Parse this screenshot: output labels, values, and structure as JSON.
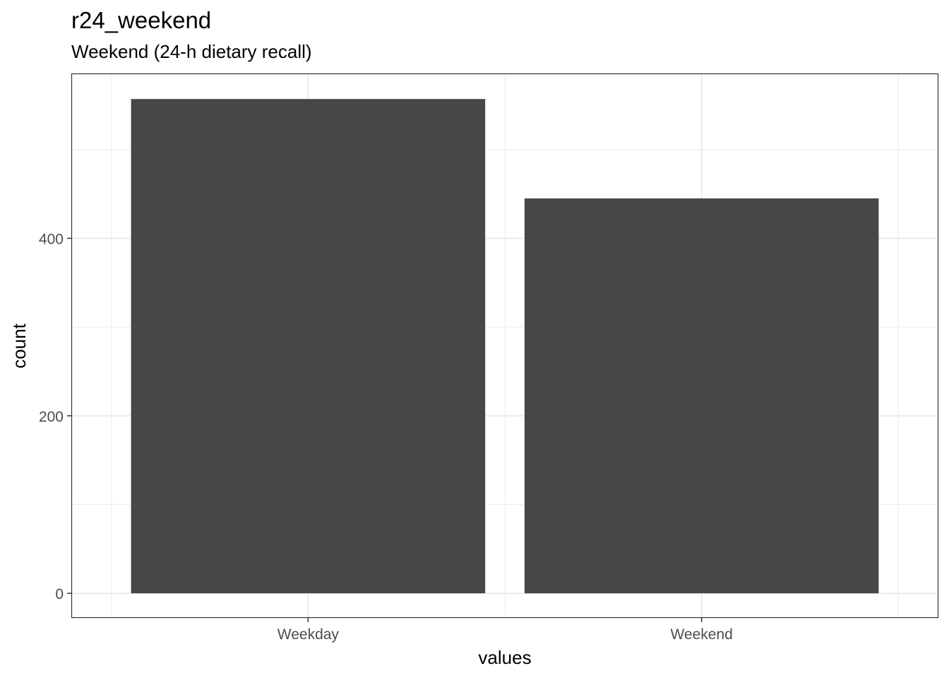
{
  "chart_data": {
    "type": "bar",
    "title": "r24_weekend",
    "subtitle": "Weekend (24-h dietary recall)",
    "xlabel": "values",
    "ylabel": "count",
    "categories": [
      "Weekday",
      "Weekend"
    ],
    "values": [
      557,
      445
    ],
    "ylim": [
      -27,
      585
    ],
    "y_ticks": [
      0,
      200,
      400
    ],
    "y_minor_ticks": [
      100,
      300,
      500
    ],
    "y_tick_labels": [
      "0",
      "200",
      "400"
    ],
    "grid": true,
    "bar_color": "#474747",
    "grid_color": "#ebebeb",
    "panel_border_color": "#333333"
  }
}
